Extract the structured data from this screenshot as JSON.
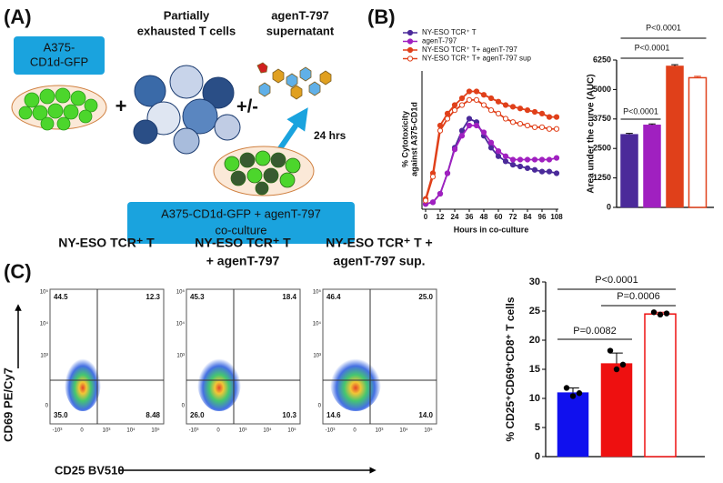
{
  "panel_labels": [
    "(A)",
    "(B)",
    "(C)"
  ],
  "panel_a": {
    "target_box": [
      "A375-",
      "CD1d-GFP"
    ],
    "plus": "+",
    "t_cells": [
      "Partially",
      "exhausted T cells"
    ],
    "plus_minus": "+/-",
    "supernatant": [
      "agenT-797",
      "supernatant"
    ],
    "time": "24 hrs",
    "coculture_box": [
      "A375-CD1d-GFP + agenT-797",
      "co-culture"
    ]
  },
  "chart_data": [
    {
      "type": "line",
      "y_label": [
        "% Cytotoxicity",
        "against A375-CD1d"
      ],
      "x_label": "Hours in co-culture",
      "x": [
        0,
        6,
        12,
        18,
        24,
        30,
        36,
        42,
        48,
        54,
        60,
        66,
        72,
        78,
        84,
        90,
        96,
        102,
        108
      ],
      "xlim": [
        0,
        108
      ],
      "xticks": [
        0,
        12,
        24,
        36,
        48,
        60,
        72,
        84,
        96,
        108
      ],
      "ylim": [
        0,
        80
      ],
      "series": [
        {
          "name": "NY-ESO TCR⁺ T",
          "color": "#4b2a9a",
          "hollow": false,
          "values": [
            2,
            3,
            8,
            20,
            35,
            45,
            52,
            50,
            42,
            35,
            30,
            27,
            25,
            24,
            23,
            22,
            21,
            21,
            20
          ]
        },
        {
          "name": "agenT-797",
          "color": "#a020c0",
          "hollow": false,
          "values": [
            2,
            3,
            8,
            20,
            34,
            42,
            48,
            48,
            44,
            38,
            33,
            30,
            28,
            28,
            28,
            28,
            28,
            28,
            29
          ]
        },
        {
          "name": "NY-ESO TCR⁺ T+ agenT-797",
          "color": "#e0401a",
          "hollow": false,
          "values": [
            5,
            20,
            48,
            55,
            60,
            64,
            68,
            68,
            66,
            64,
            62,
            60,
            59,
            58,
            57,
            56,
            55,
            53,
            53
          ]
        },
        {
          "name": "NY-ESO TCR⁺ T+ agenT-797 sup",
          "color": "#e0401a",
          "hollow": true,
          "values": [
            4,
            18,
            45,
            52,
            57,
            60,
            63,
            63,
            60,
            57,
            55,
            52,
            50,
            49,
            48,
            47,
            47,
            46,
            46
          ]
        }
      ]
    },
    {
      "type": "bar",
      "y_label": "Area under the curve (AUC)",
      "categories": [
        null,
        null,
        null,
        null
      ],
      "values": [
        3100,
        3500,
        6000,
        5500
      ],
      "errors": [
        40,
        40,
        50,
        60
      ],
      "colors": [
        "#4b2a9a",
        "#a020c0",
        "#e0401a",
        "#e0401a"
      ],
      "hollow": [
        false,
        false,
        false,
        true
      ],
      "ylim": [
        0,
        6250
      ],
      "yticks": [
        0,
        1250,
        2500,
        3750,
        5000,
        6250
      ],
      "annotations": [
        "P<0.0001",
        "P<0.0001",
        "P<0.0001"
      ]
    },
    {
      "type": "bar",
      "y_label": "% CD25⁺CD69⁺CD8⁺ T cells",
      "categories": [
        null,
        null,
        null
      ],
      "values": [
        11,
        16,
        24.5
      ],
      "errors": [
        0.8,
        1.8,
        0.3
      ],
      "points": [
        [
          11.8,
          10.4,
          10.9
        ],
        [
          18.2,
          15,
          15.8
        ],
        [
          24.8,
          24.4,
          24.6
        ]
      ],
      "colors": [
        "#1010ee",
        "#ee1010",
        "#ee1010"
      ],
      "hollow": [
        false,
        false,
        true
      ],
      "ylim": [
        0,
        30
      ],
      "yticks": [
        0,
        5,
        10,
        15,
        20,
        25,
        30
      ],
      "annotations": [
        "P<0.0001",
        "P=0.0006",
        "P=0.0082"
      ]
    }
  ],
  "flow": {
    "titles": [
      [
        "NY-ESO TCR⁺ T"
      ],
      [
        "NY-ESO TCR⁺ T",
        "+ agenT-797"
      ],
      [
        "NY-ESO TCR⁺ T +",
        "agenT-797 sup."
      ]
    ],
    "quadrants": [
      [
        "44.5",
        "12.3",
        "35.0",
        "8.48"
      ],
      [
        "45.3",
        "18.4",
        "26.0",
        "10.3"
      ],
      [
        "46.4",
        "25.0",
        "14.6",
        "14.0"
      ]
    ],
    "y_ticks": [
      "10⁵",
      "10⁴",
      "10³",
      "0"
    ],
    "x_ticks": [
      "-10³",
      "0",
      "10³",
      "10⁴",
      "10⁵"
    ],
    "y_axis_label": "CD69 PE/Cy7",
    "x_axis_label": "CD25 BV510"
  }
}
